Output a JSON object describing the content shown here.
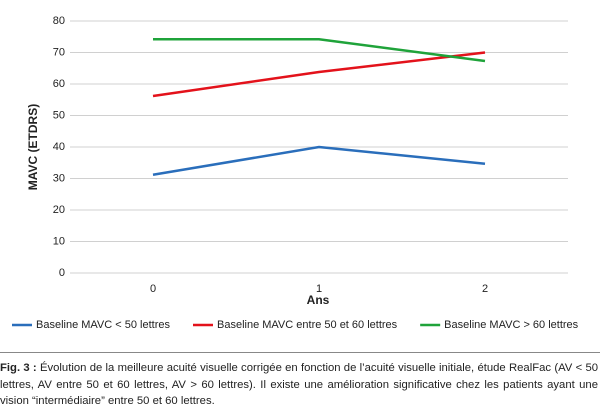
{
  "chart_data": {
    "type": "line",
    "categories": [
      "0",
      "1",
      "2"
    ],
    "x_label": "Ans",
    "y_label": "MAVC (ETDRS)",
    "ylim": [
      0,
      80
    ],
    "yticks": [
      0,
      10,
      20,
      30,
      40,
      50,
      60,
      70,
      80
    ],
    "grid": true,
    "legend": "bottom",
    "series": [
      {
        "name": "Baseline MAVC < 50 lettres",
        "color": "#2a6ebb",
        "values": [
          31.2,
          40,
          34.7
        ]
      },
      {
        "name": "Baseline MAVC entre 50 et 60 lettres",
        "color": "#e3121b",
        "values": [
          56.2,
          63.8,
          70
        ]
      },
      {
        "name": "Baseline MAVC > 60 lettres",
        "color": "#1fa33a",
        "values": [
          74.2,
          74.2,
          67.3
        ]
      }
    ],
    "caption": {
      "label": "Fig. 3 :",
      "text": "Évolution de la meilleure acuité visuelle corrigée en fonction de l’acuité visuelle initiale, étude RealFac (AV < 50 lettres, AV entre 50 et 60 lettres, AV > 60 lettres). Il existe une amélioration significative chez les patients ayant une vision “intermédiaire” entre 50 et 60 lettres."
    }
  }
}
